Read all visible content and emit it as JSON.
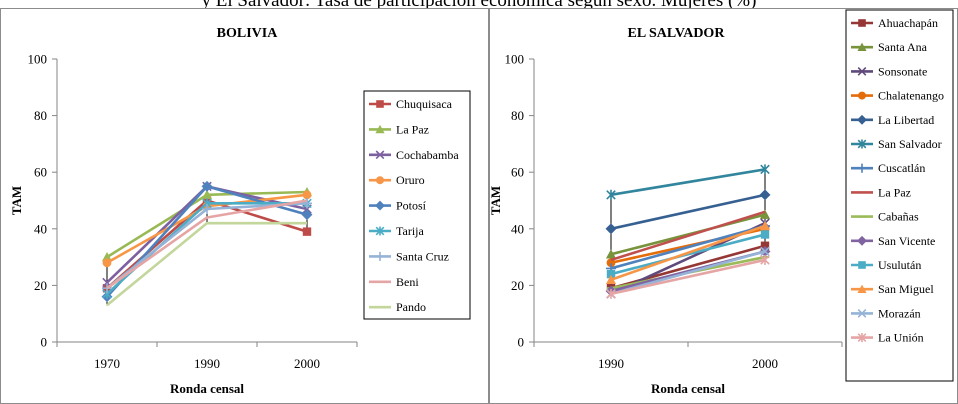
{
  "caption": "y El Salvador: Tasa de participación económica según sexo. Mujeres (%)",
  "chart_data": [
    {
      "type": "line",
      "title": "BOLIVIA",
      "xlabel": "Ronda censal",
      "ylabel": "TAM",
      "x": [
        "1970",
        "1990",
        "2000"
      ],
      "ylim": [
        0,
        100
      ],
      "yticks": [
        0,
        20,
        40,
        60,
        80,
        100
      ],
      "legend_position": "right",
      "series": [
        {
          "name": "Chuquisaca",
          "color": "#be4b48",
          "marker": "square",
          "values": [
            19,
            50,
            39
          ]
        },
        {
          "name": "La Paz",
          "color": "#98b954",
          "marker": "triangle",
          "values": [
            30,
            52,
            53
          ]
        },
        {
          "name": "Cochabamba",
          "color": "#7d60a0",
          "marker": "x",
          "values": [
            21,
            55,
            47
          ]
        },
        {
          "name": "Oruro",
          "color": "#f79646",
          "marker": "circle",
          "values": [
            28,
            48,
            52
          ]
        },
        {
          "name": "Potosí",
          "color": "#4f81bd",
          "marker": "diamond",
          "values": [
            16,
            55,
            45
          ]
        },
        {
          "name": "Tarija",
          "color": "#4bacc6",
          "marker": "star",
          "values": [
            17,
            49,
            49
          ]
        },
        {
          "name": "Santa Cruz",
          "color": "#95b3d7",
          "marker": "plus",
          "values": [
            19,
            47,
            49
          ]
        },
        {
          "name": "Beni",
          "color": "#e6a5a5",
          "marker": "none",
          "values": [
            19,
            44,
            50
          ]
        },
        {
          "name": "Pando",
          "color": "#c3d69b",
          "marker": "none",
          "values": [
            13,
            42,
            42
          ]
        }
      ]
    },
    {
      "type": "line",
      "title": "EL SALVADOR",
      "xlabel": "Ronda censal",
      "ylabel": "TAM",
      "x": [
        "1990",
        "2000"
      ],
      "ylim": [
        0,
        100
      ],
      "yticks": [
        0,
        20,
        40,
        60,
        80,
        100
      ],
      "legend_position": "right",
      "series": [
        {
          "name": "Ahuachapán",
          "color": "#953735",
          "marker": "square",
          "values": [
            19,
            34
          ]
        },
        {
          "name": "Santa Ana",
          "color": "#77933c",
          "marker": "triangle",
          "values": [
            31,
            45
          ]
        },
        {
          "name": "Sonsonate",
          "color": "#604a7b",
          "marker": "x",
          "values": [
            17,
            42
          ]
        },
        {
          "name": "Chalatenango",
          "color": "#e46c0a",
          "marker": "circle",
          "values": [
            28,
            40
          ]
        },
        {
          "name": "La Libertad",
          "color": "#376092",
          "marker": "diamond",
          "values": [
            40,
            52
          ]
        },
        {
          "name": "San Salvador",
          "color": "#31859c",
          "marker": "star",
          "values": [
            52,
            61
          ]
        },
        {
          "name": "Cuscatlán",
          "color": "#4f81bd",
          "marker": "plus",
          "values": [
            26,
            41
          ]
        },
        {
          "name": "La Paz",
          "color": "#c0504d",
          "marker": "none",
          "values": [
            29,
            46
          ]
        },
        {
          "name": "Cabañas",
          "color": "#9bbb59",
          "marker": "dash",
          "values": [
            19,
            30
          ]
        },
        {
          "name": "San Vicente",
          "color": "#8064a2",
          "marker": "diamond",
          "values": [
            18,
            32
          ]
        },
        {
          "name": "Usulután",
          "color": "#4bacc6",
          "marker": "square",
          "values": [
            24,
            38
          ]
        },
        {
          "name": "San Miguel",
          "color": "#f79646",
          "marker": "triangle",
          "values": [
            22,
            41
          ]
        },
        {
          "name": "Morazán",
          "color": "#95b3d7",
          "marker": "x",
          "values": [
            17,
            32
          ]
        },
        {
          "name": "La Unión",
          "color": "#e6a5a5",
          "marker": "star",
          "values": [
            17,
            29
          ]
        }
      ]
    }
  ]
}
